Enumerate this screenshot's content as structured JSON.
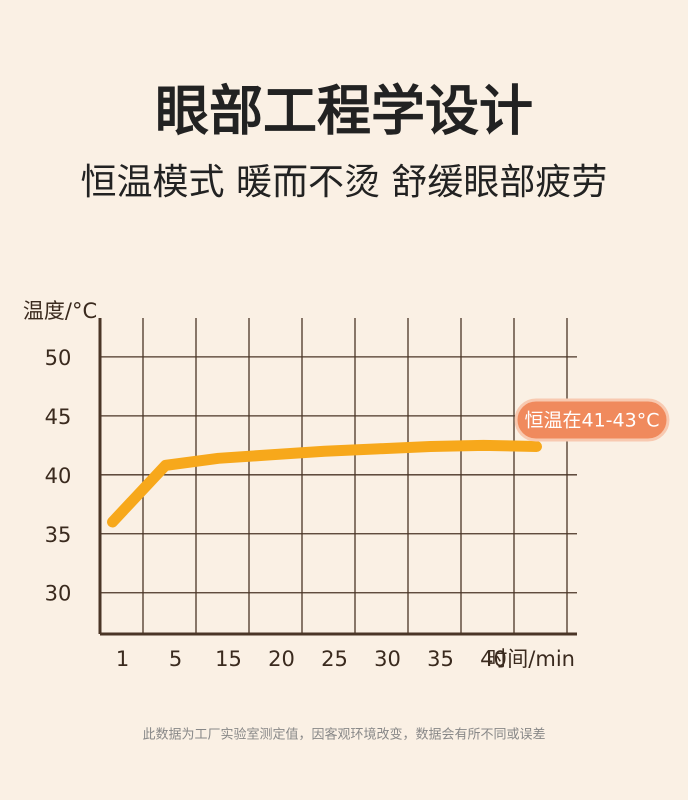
{
  "chart_data": {
    "type": "line",
    "title": "眼部工程学设计",
    "subtitle": "恒温模式 暖而不烫 舒缓眼部疲劳",
    "y_label": "温度/°C",
    "x_label": "时间/min",
    "categories": [
      "1",
      "5",
      "15",
      "20",
      "25",
      "30",
      "35",
      "40",
      null
    ],
    "series": [
      {
        "name": "温度",
        "color": "#f7a81b",
        "values": [
          36,
          40.8,
          41.4,
          41.7,
          42.0,
          42.2,
          42.4,
          42.5,
          42.4
        ]
      }
    ],
    "ylim": [
      26.5,
      53.3
    ],
    "yticks": [
      30,
      35,
      40,
      45,
      50
    ],
    "grid": true,
    "annotation": "恒温在41-43°C",
    "footnote": "此数据为工厂实验室测定值，因客观环境改变，数据会有所不同或误差"
  }
}
